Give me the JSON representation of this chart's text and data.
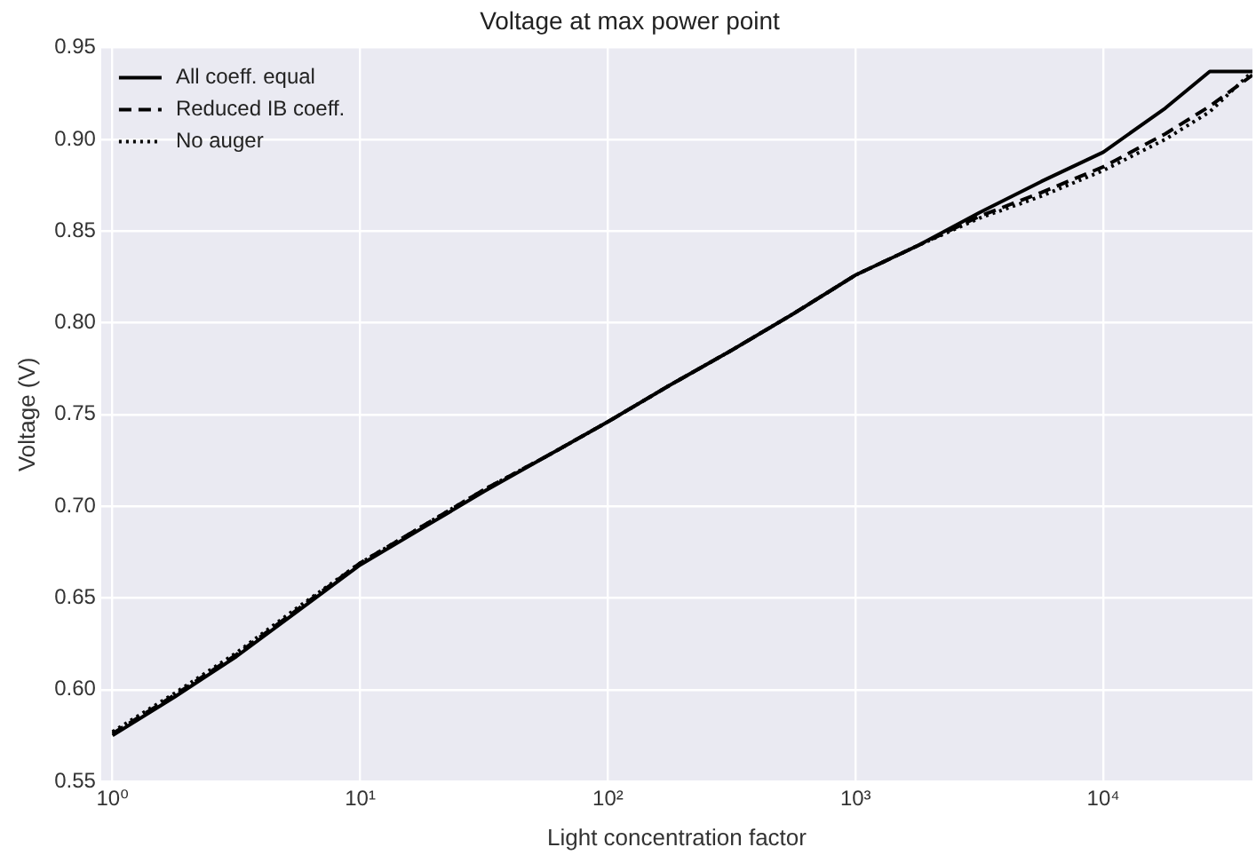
{
  "chart_data": {
    "type": "line",
    "title": "Voltage at max power point",
    "xlabel": "Light concentration factor",
    "ylabel": "Voltage (V)",
    "x": [
      1,
      1.78,
      3.16,
      5.62,
      10,
      17.8,
      31.6,
      56.2,
      100,
      178,
      316,
      562,
      1000,
      1780,
      3160,
      5620,
      10000,
      17800,
      26900,
      40000
    ],
    "series": [
      {
        "name": "All coeff. equal",
        "color": "#000000",
        "line_style": "solid",
        "values": [
          0.575,
          0.596,
          0.618,
          0.643,
          0.668,
          0.688,
          0.708,
          0.727,
          0.746,
          0.766,
          0.785,
          0.805,
          0.826,
          0.842,
          0.86,
          0.877,
          0.893,
          0.917,
          0.937,
          0.937
        ]
      },
      {
        "name": "Reduced IB coeff.",
        "color": "#000000",
        "line_style": "dashed",
        "values": [
          0.576,
          0.597,
          0.619,
          0.644,
          0.669,
          0.689,
          0.709,
          0.727,
          0.746,
          0.766,
          0.785,
          0.805,
          0.826,
          0.842,
          0.858,
          0.871,
          0.885,
          0.903,
          0.918,
          0.935
        ]
      },
      {
        "name": "No auger",
        "color": "#000000",
        "line_style": "dotted",
        "values": [
          0.577,
          0.598,
          0.62,
          0.645,
          0.669,
          0.689,
          0.709,
          0.727,
          0.746,
          0.766,
          0.785,
          0.805,
          0.826,
          0.842,
          0.857,
          0.869,
          0.883,
          0.9,
          0.915,
          0.937
        ]
      }
    ],
    "log": "x",
    "xlim": [
      0.9,
      40000
    ],
    "xticks": [
      {
        "value": 1,
        "label": "10⁰"
      },
      {
        "value": 10,
        "label": "10¹"
      },
      {
        "value": 100,
        "label": "10²"
      },
      {
        "value": 1000,
        "label": "10³"
      },
      {
        "value": 10000,
        "label": "10⁴"
      }
    ],
    "ylim": [
      0.55,
      0.95
    ],
    "yticks": [
      {
        "value": 0.55,
        "label": "0.55"
      },
      {
        "value": 0.6,
        "label": "0.60"
      },
      {
        "value": 0.65,
        "label": "0.65"
      },
      {
        "value": 0.7,
        "label": "0.70"
      },
      {
        "value": 0.75,
        "label": "0.75"
      },
      {
        "value": 0.8,
        "label": "0.80"
      },
      {
        "value": 0.85,
        "label": "0.85"
      },
      {
        "value": 0.9,
        "label": "0.90"
      },
      {
        "value": 0.95,
        "label": "0.95"
      }
    ],
    "grid": true,
    "legend": "top left",
    "marker": "none"
  }
}
